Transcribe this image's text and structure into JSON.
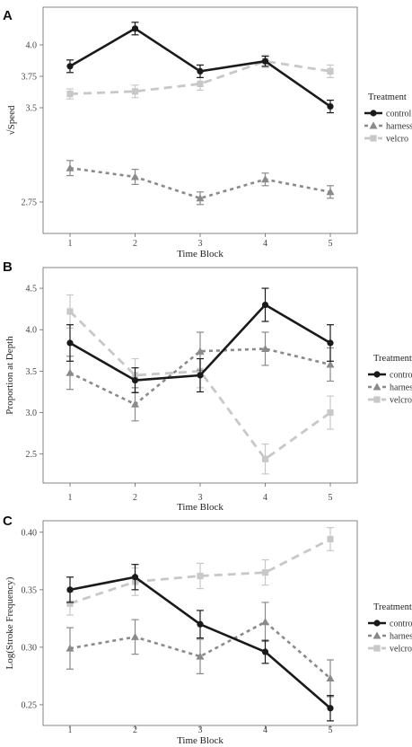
{
  "panels": [
    {
      "label": "A",
      "xlabel": "Time Block",
      "ylabel": "√Speed",
      "yticks": [
        "2.75",
        "3.5",
        "3.75",
        "4.0"
      ],
      "legend_title": "Treatment",
      "legend_items": [
        "control",
        "harness",
        "velcro"
      ]
    },
    {
      "label": "B",
      "xlabel": "Time Block",
      "ylabel": "Proportion at Depth",
      "yticks": [
        "2.5",
        "3.0",
        "3.5",
        "4.0",
        "4.5"
      ],
      "legend_title": "Treatment",
      "legend_items": [
        "control",
        "harness",
        "velcro"
      ]
    },
    {
      "label": "C",
      "xlabel": "Time Block",
      "ylabel": "Log(Stroke Frequency)",
      "yticks": [
        "0.25",
        "0.30",
        "0.35",
        "0.40"
      ],
      "legend_title": "Treatment",
      "legend_items": [
        "control",
        "harness",
        "velcro"
      ]
    }
  ],
  "colors": {
    "control": "#1a1a1a",
    "harness": "#8a8a8a",
    "velcro": "#c8c8c8"
  },
  "chart_data": [
    {
      "type": "line",
      "title": "",
      "xlabel": "Time Block",
      "ylabel": "√Speed",
      "x": [
        1,
        2,
        3,
        4,
        5
      ],
      "y_ticks": [
        2.75,
        3.5,
        3.75,
        4.0
      ],
      "ylim": [
        2.5,
        4.3
      ],
      "grid": false,
      "legend_placement": "right",
      "series": [
        {
          "name": "control",
          "values": [
            3.83,
            4.13,
            3.79,
            3.87,
            3.51
          ],
          "errors": [
            0.05,
            0.05,
            0.05,
            0.04,
            0.05
          ]
        },
        {
          "name": "harness",
          "values": [
            3.02,
            2.95,
            2.78,
            2.93,
            2.83
          ],
          "errors": [
            0.06,
            0.06,
            0.05,
            0.05,
            0.05
          ]
        },
        {
          "name": "velcro",
          "values": [
            3.61,
            3.63,
            3.69,
            3.87,
            3.79
          ],
          "errors": [
            0.04,
            0.05,
            0.05,
            0.05,
            0.05
          ]
        }
      ]
    },
    {
      "type": "line",
      "title": "",
      "xlabel": "Time Block",
      "ylabel": "Proportion at Depth",
      "x": [
        1,
        2,
        3,
        4,
        5
      ],
      "y_ticks": [
        2.5,
        3.0,
        3.5,
        4.0,
        4.5
      ],
      "ylim": [
        2.15,
        4.75
      ],
      "grid": false,
      "legend_placement": "right",
      "series": [
        {
          "name": "control",
          "values": [
            3.84,
            3.39,
            3.45,
            4.3,
            3.84
          ],
          "errors": [
            0.22,
            0.15,
            0.2,
            0.2,
            0.22
          ]
        },
        {
          "name": "harness",
          "values": [
            3.48,
            3.1,
            3.74,
            3.77,
            3.58
          ],
          "errors": [
            0.2,
            0.2,
            0.23,
            0.2,
            0.2
          ]
        },
        {
          "name": "velcro",
          "values": [
            4.22,
            3.45,
            3.5,
            2.44,
            3.0
          ],
          "errors": [
            0.2,
            0.2,
            0.2,
            0.18,
            0.2
          ]
        }
      ]
    },
    {
      "type": "line",
      "title": "",
      "xlabel": "Time Block",
      "ylabel": "Log(Stroke Frequency)",
      "x": [
        1,
        2,
        3,
        4,
        5
      ],
      "y_ticks": [
        0.25,
        0.3,
        0.35,
        0.4
      ],
      "ylim": [
        0.232,
        0.41
      ],
      "grid": false,
      "legend_placement": "right",
      "series": [
        {
          "name": "control",
          "values": [
            0.35,
            0.361,
            0.32,
            0.296,
            0.247
          ],
          "errors": [
            0.011,
            0.011,
            0.012,
            0.01,
            0.011
          ]
        },
        {
          "name": "harness",
          "values": [
            0.299,
            0.309,
            0.292,
            0.322,
            0.273
          ],
          "errors": [
            0.018,
            0.015,
            0.015,
            0.017,
            0.016
          ]
        },
        {
          "name": "velcro",
          "values": [
            0.338,
            0.357,
            0.362,
            0.365,
            0.394
          ],
          "errors": [
            0.01,
            0.012,
            0.011,
            0.011,
            0.01
          ]
        }
      ]
    }
  ]
}
